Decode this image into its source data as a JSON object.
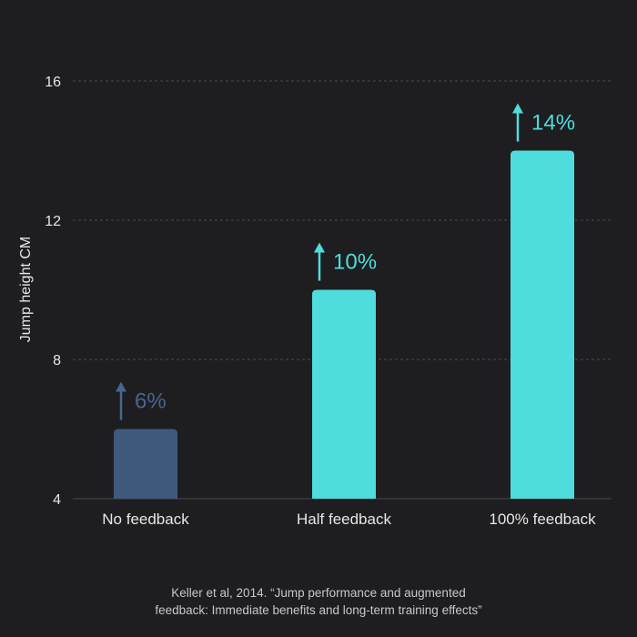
{
  "chart_data": {
    "type": "bar",
    "categories": [
      "No feedback",
      "Half feedback",
      "100% feedback"
    ],
    "values": [
      6,
      10,
      14
    ],
    "annotations": [
      "6%",
      "10%",
      "14%"
    ],
    "bar_colors": [
      "#3f5a7c",
      "#4fdcdc",
      "#4fdcdc"
    ],
    "annotation_colors": [
      "#46678e",
      "#4fdcdc",
      "#4fdcdc"
    ],
    "ylabel": "Jump height CM",
    "xlabel": "",
    "title": "",
    "ylim": [
      4,
      16
    ],
    "yticks": [
      4,
      8,
      12,
      16
    ],
    "grid": true
  },
  "colors": {
    "background": "#1e1e20",
    "grid": "#4a4a50",
    "text": "#e6e6e6"
  },
  "citation": {
    "line1": "Keller et al, 2014. “Jump performance and augmented",
    "line2": "feedback: Immediate benefits and long-term training effects”"
  }
}
